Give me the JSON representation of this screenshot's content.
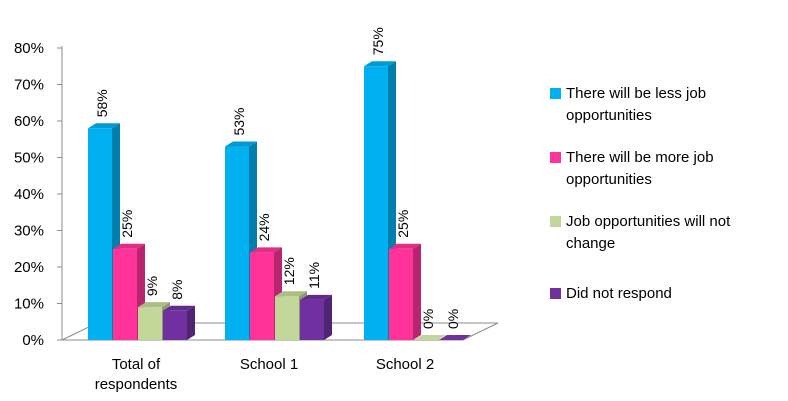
{
  "chart_data": {
    "type": "bar",
    "title": "",
    "xlabel": "",
    "ylabel": "",
    "ylim": [
      0,
      80
    ],
    "y_ticks": [
      "0%",
      "10%",
      "20%",
      "30%",
      "40%",
      "50%",
      "60%",
      "70%",
      "80%"
    ],
    "categories": [
      [
        "Total of",
        "respondents"
      ],
      [
        "School 1"
      ],
      [
        "School 2"
      ]
    ],
    "series": [
      {
        "name": "There will be less job opportunities",
        "legend_lines": [
          "There will be less job",
          "opportunities"
        ],
        "color": "#00b0f0",
        "values": [
          58,
          53,
          75
        ],
        "labels": [
          "58%",
          "53%",
          "75%"
        ]
      },
      {
        "name": "There will be more job opportunities",
        "legend_lines": [
          "There will be more job",
          "opportunities"
        ],
        "color": "#ff3399",
        "values": [
          25,
          24,
          25
        ],
        "labels": [
          "25%",
          "24%",
          "25%"
        ]
      },
      {
        "name": "Job opportunities will not change",
        "legend_lines": [
          "Job opportunities will not",
          "change"
        ],
        "color": "#c4d79b",
        "values": [
          9,
          12,
          0
        ],
        "labels": [
          "9%",
          "12%",
          "0%"
        ]
      },
      {
        "name": "Did not respond",
        "legend_lines": [
          "Did not respond"
        ],
        "color": "#7030a0",
        "values": [
          8,
          11,
          0
        ],
        "labels": [
          "8%",
          "11%",
          "0%"
        ]
      }
    ],
    "legend_position": "right",
    "grid": false,
    "style": "3d-clustered-column"
  }
}
